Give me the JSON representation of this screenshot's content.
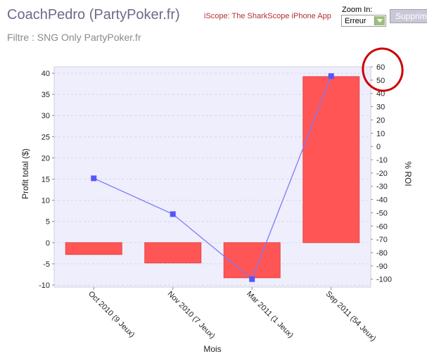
{
  "header": {
    "title": "CoachPedro (PartyPoker.fr)",
    "filter": "Filtre : SNG Only PartyPoker.fr",
    "promo_link": "iScope: The SharkScope iPhone App",
    "zoom_label": "Zoom In:",
    "zoom_value": "Erreur",
    "delete_button": "Supprim"
  },
  "colors": {
    "bar": "#ff5555",
    "line": "#7a7aff",
    "marker": "#5555ff",
    "plot_bg": "#eeeefc",
    "annotation": "#cc0000"
  },
  "chart_data": {
    "type": "bar",
    "categories": [
      "Oct 2010 (9 Jeux)",
      "Nov 2010 (7 Jeux)",
      "Mar 2011 (1 Jeux)",
      "Sep 2011 (54 Jeux)"
    ],
    "series": [
      {
        "name": "Profit total ($)",
        "type": "bar",
        "axis": "left",
        "values": [
          -2.8,
          -4.8,
          -8.3,
          39.2
        ]
      },
      {
        "name": "% ROI",
        "type": "line",
        "axis": "right",
        "values": [
          -24,
          -51,
          -100,
          53
        ]
      }
    ],
    "xlabel": "Mois",
    "ylabel": "Profit total ($)",
    "y2label": "% ROI",
    "ylim": [
      -10.5,
      41.5
    ],
    "y2lim": [
      -106,
      60
    ],
    "yticks": [
      -10,
      -5,
      0,
      5,
      10,
      15,
      20,
      25,
      30,
      35,
      40
    ],
    "y2ticks": [
      -100,
      -90,
      -80,
      -70,
      -60,
      -50,
      -40,
      -30,
      -20,
      -10,
      0,
      10,
      20,
      30,
      40,
      50,
      60
    ],
    "grid": true
  }
}
